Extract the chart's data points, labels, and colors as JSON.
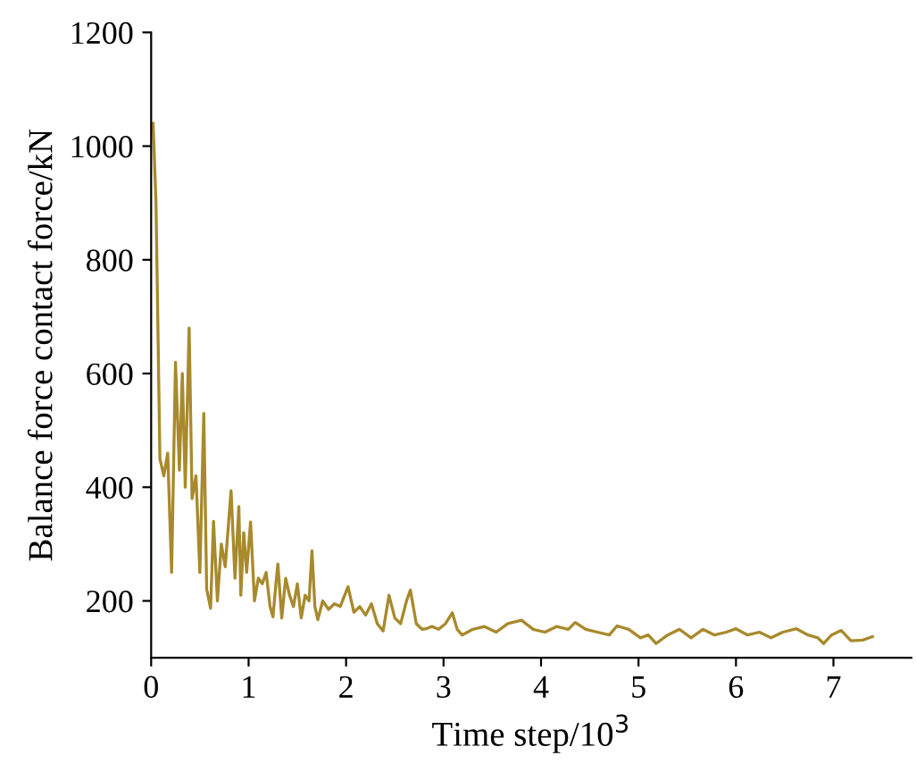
{
  "chart_data": {
    "type": "line",
    "xlabel": "Time step/10$^{3}$",
    "ylabel": "Balance force contact force/kN",
    "xlim": [
      0,
      7.8
    ],
    "ylim": [
      100,
      1200
    ],
    "xticks": [
      0,
      1,
      2,
      3,
      4,
      5,
      6,
      7
    ],
    "yticks": [
      200,
      400,
      600,
      800,
      1000,
      1200
    ],
    "grid": false,
    "legend": false,
    "marker": "none",
    "line_style": "solid",
    "series": [
      {
        "color": "#a8892c",
        "x": [
          0.02,
          0.05,
          0.09,
          0.13,
          0.17,
          0.21,
          0.25,
          0.29,
          0.32,
          0.35,
          0.39,
          0.42,
          0.46,
          0.5,
          0.54,
          0.57,
          0.61,
          0.64,
          0.68,
          0.72,
          0.76,
          0.8,
          0.82,
          0.86,
          0.9,
          0.92,
          0.95,
          0.98,
          1.02,
          1.06,
          1.1,
          1.14,
          1.18,
          1.22,
          1.25,
          1.28,
          1.3,
          1.34,
          1.38,
          1.42,
          1.46,
          1.5,
          1.54,
          1.58,
          1.62,
          1.65,
          1.68,
          1.71,
          1.76,
          1.82,
          1.88,
          1.94,
          2.02,
          2.08,
          2.14,
          2.2,
          2.26,
          2.32,
          2.38,
          2.44,
          2.5,
          2.56,
          2.62,
          2.66,
          2.72,
          2.78,
          2.82,
          2.88,
          2.95,
          3.02,
          3.09,
          3.14,
          3.19,
          3.3,
          3.42,
          3.54,
          3.66,
          3.8,
          3.92,
          4.04,
          4.16,
          4.28,
          4.35,
          4.46,
          4.58,
          4.7,
          4.78,
          4.9,
          5.02,
          5.1,
          5.18,
          5.3,
          5.42,
          5.54,
          5.66,
          5.78,
          5.9,
          6.0,
          6.12,
          6.24,
          6.36,
          6.48,
          6.62,
          6.74,
          6.84,
          6.9,
          6.98,
          7.08,
          7.18,
          7.3,
          7.4
        ],
        "values": [
          1040,
          900,
          450,
          420,
          460,
          250,
          620,
          430,
          600,
          400,
          680,
          380,
          420,
          250,
          530,
          220,
          187,
          340,
          200,
          300,
          260,
          350,
          394,
          240,
          366,
          210,
          320,
          250,
          339,
          200,
          240,
          230,
          250,
          190,
          172,
          230,
          265,
          170,
          240,
          210,
          190,
          230,
          170,
          210,
          200,
          288,
          190,
          167,
          200,
          185,
          195,
          190,
          225,
          180,
          190,
          175,
          195,
          160,
          147,
          210,
          170,
          160,
          200,
          219,
          160,
          150,
          151,
          155,
          150,
          160,
          179,
          150,
          140,
          150,
          155,
          145,
          160,
          166,
          150,
          145,
          155,
          150,
          162,
          150,
          145,
          140,
          156,
          150,
          135,
          140,
          125,
          140,
          150,
          135,
          150,
          140,
          145,
          151,
          140,
          145,
          135,
          145,
          151,
          140,
          135,
          125,
          140,
          148,
          130,
          131,
          137
        ]
      }
    ]
  }
}
